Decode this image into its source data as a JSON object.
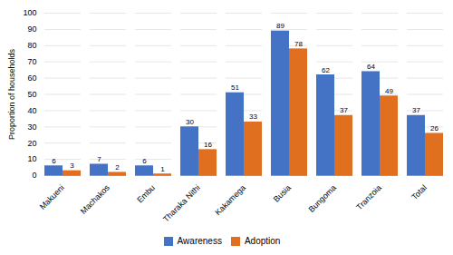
{
  "chart_data": {
    "type": "bar",
    "categories": [
      "Makueni",
      "Machakos",
      "Embu",
      "Tharaka Nithi",
      "Kakamega",
      "Busia",
      "Bungoma",
      "Tranzoia",
      "Total"
    ],
    "series": [
      {
        "name": "Awareness",
        "color": "#4472C4",
        "values": [
          6,
          7,
          6,
          30,
          51,
          89,
          62,
          64,
          37
        ]
      },
      {
        "name": "Adoption",
        "color": "#E07020",
        "values": [
          3,
          2,
          1,
          16,
          33,
          78,
          37,
          49,
          26
        ]
      }
    ],
    "ylabel": "Proportion of households",
    "ylim": [
      0,
      100
    ],
    "yticks": [
      0,
      10,
      20,
      30,
      40,
      50,
      60,
      70,
      80,
      90,
      100
    ],
    "grid": true,
    "data_labels": true,
    "legend": "bottom"
  }
}
